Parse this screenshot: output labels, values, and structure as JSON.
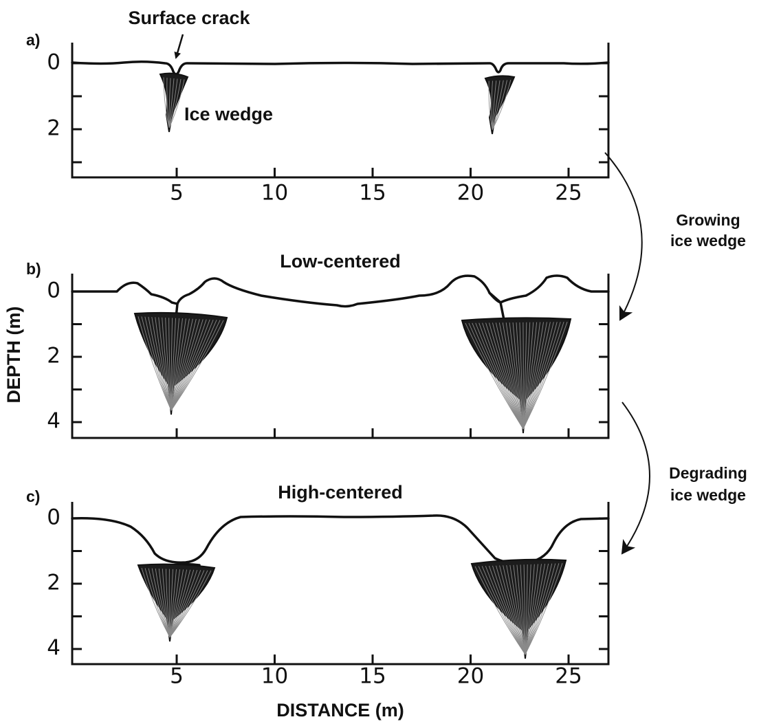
{
  "axes": {
    "y_label": "DEPTH (m)",
    "x_label": "DISTANCE (m)"
  },
  "panels": [
    {
      "label": "a)",
      "yticks": [
        "0",
        "2"
      ],
      "xticks": [
        "5",
        "10",
        "15",
        "20",
        "25"
      ],
      "annotations": [
        "Surface crack",
        "Ice wedge"
      ]
    },
    {
      "label": "b)",
      "title": "Low-centered",
      "yticks": [
        "0",
        "2",
        "4"
      ]
    },
    {
      "label": "c)",
      "title": "High-centered",
      "yticks": [
        "0",
        "2",
        "4"
      ],
      "xticks": [
        "5",
        "10",
        "15",
        "20",
        "25"
      ]
    }
  ],
  "transitions": [
    {
      "lines": [
        "Growing",
        "ice wedge"
      ]
    },
    {
      "lines": [
        "Degrading",
        "ice wedge"
      ]
    }
  ]
}
